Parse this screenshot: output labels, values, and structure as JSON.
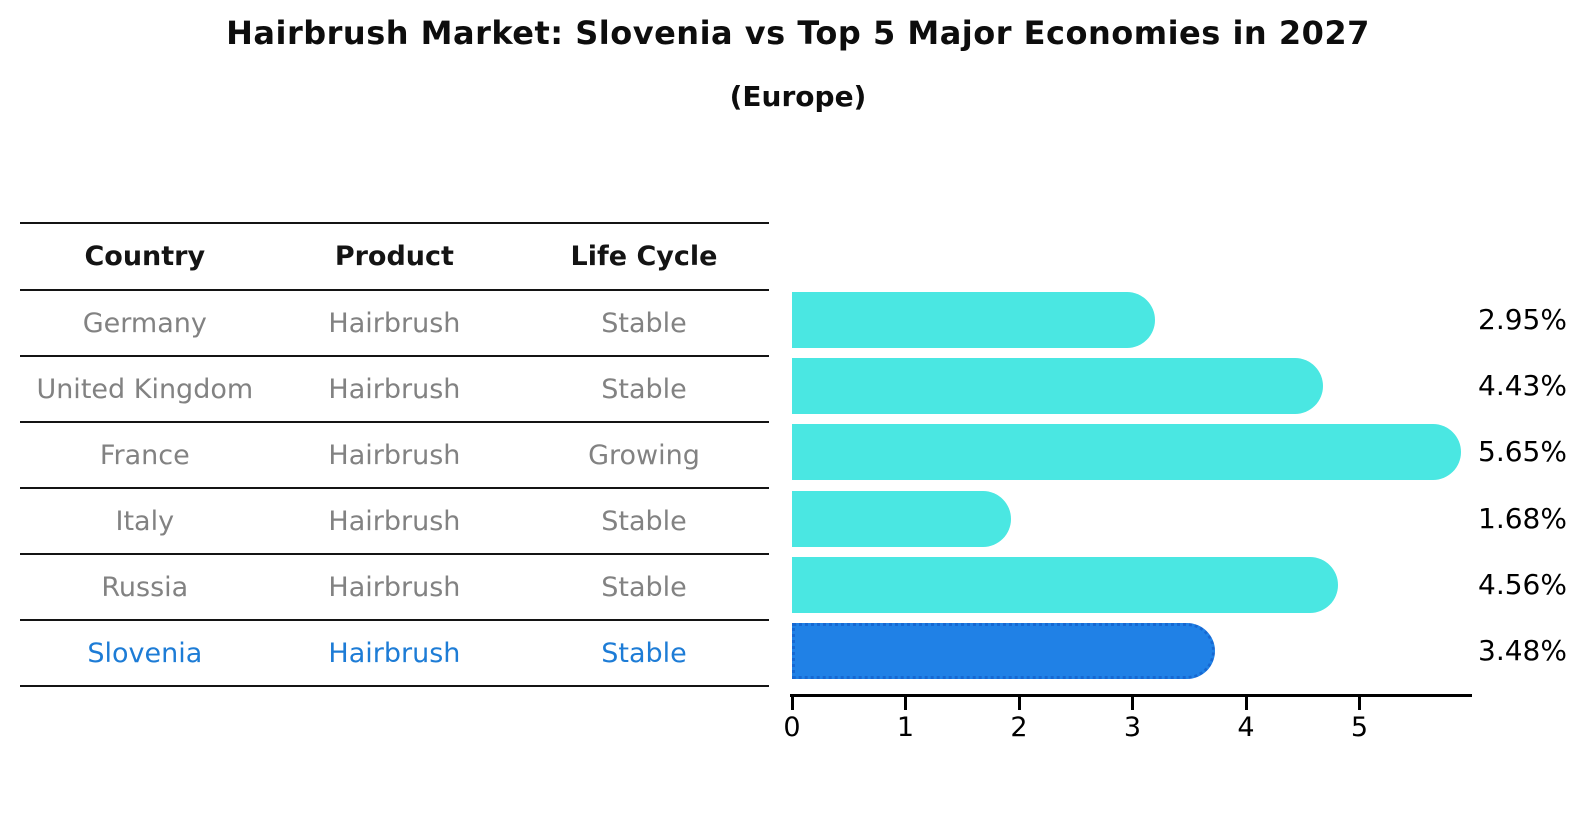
{
  "title": "Hairbrush Market: Slovenia vs Top 5 Major Economies in 2027",
  "subtitle": "(Europe)",
  "table": {
    "headers": [
      "Country",
      "Product",
      "Life Cycle"
    ],
    "rows": [
      {
        "country": "Germany",
        "product": "Hairbrush",
        "life_cycle": "Stable",
        "highlight": false
      },
      {
        "country": "United Kingdom",
        "product": "Hairbrush",
        "life_cycle": "Stable",
        "highlight": false
      },
      {
        "country": "France",
        "product": "Hairbrush",
        "life_cycle": "Growing",
        "highlight": false
      },
      {
        "country": "Italy",
        "product": "Hairbrush",
        "life_cycle": "Stable",
        "highlight": false
      },
      {
        "country": "Russia",
        "product": "Hairbrush",
        "life_cycle": "Stable",
        "highlight": false
      },
      {
        "country": "Slovenia",
        "product": "Hairbrush",
        "life_cycle": "Stable",
        "highlight": true
      }
    ]
  },
  "chart_data": {
    "type": "bar",
    "orientation": "horizontal",
    "title": "Hairbrush Market: Slovenia vs Top 5 Major Economies in 2027",
    "subtitle": "(Europe)",
    "categories": [
      "Germany",
      "United Kingdom",
      "France",
      "Italy",
      "Russia",
      "Slovenia"
    ],
    "values": [
      2.95,
      4.43,
      5.65,
      1.68,
      4.56,
      3.48
    ],
    "value_labels": [
      "2.95%",
      "4.43%",
      "5.65%",
      "1.68%",
      "4.56%",
      "3.48%"
    ],
    "unit": "%",
    "xlim": [
      0,
      6
    ],
    "x_ticks": [
      "0",
      "1",
      "2",
      "3",
      "4",
      "5"
    ],
    "highlight_index": 5,
    "grid": false,
    "legend": "none"
  },
  "colors": {
    "bar": "#4ae7e2",
    "highlight_bar": "#2081e6",
    "highlight_border": "#1668d2",
    "highlight_text": "#1d7cd6",
    "table_text": "#828282",
    "header_text": "#141414",
    "axis": "#000000"
  }
}
